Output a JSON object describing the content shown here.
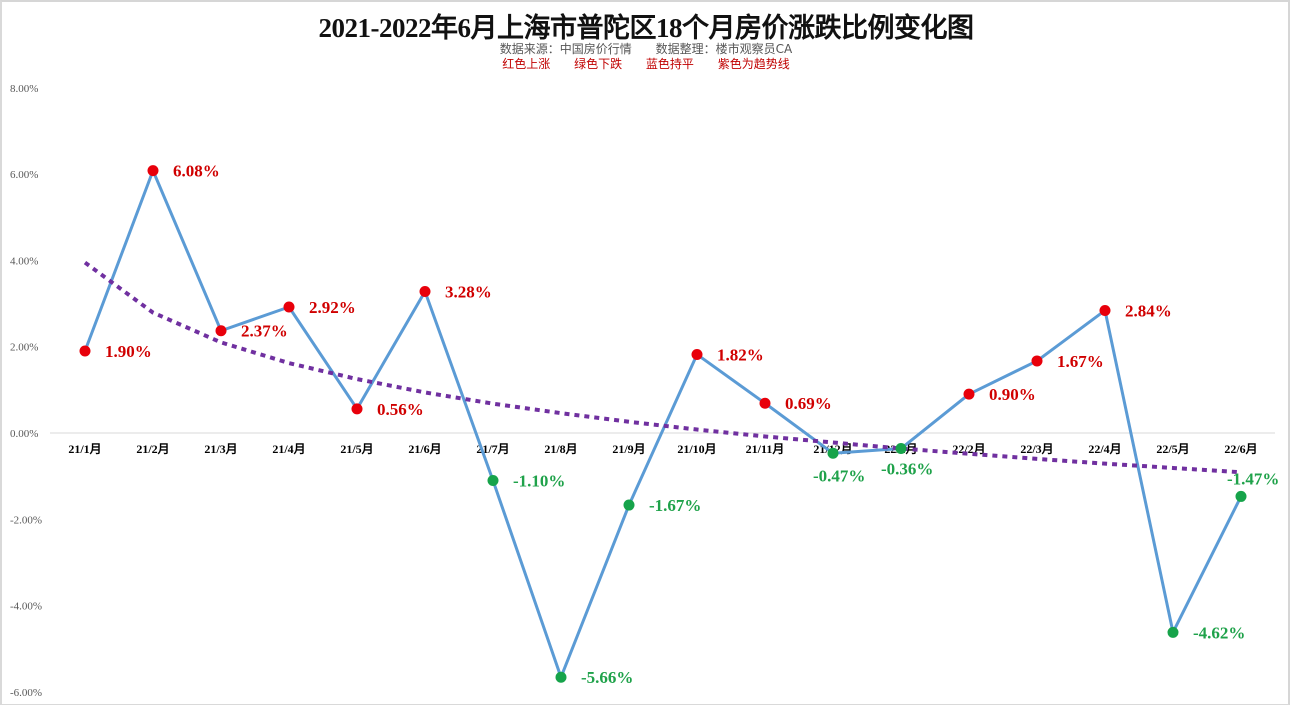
{
  "header": {
    "title": "2021-2022年6月上海市普陀区18个月房价涨跌比例变化图",
    "source": "数据来源：中国房价行情",
    "compiler": "数据整理：楼市观察员CA",
    "legend_notes": [
      "红色上涨",
      "绿色下跌",
      "蓝色持平",
      "紫色为趋势线"
    ]
  },
  "colors": {
    "line": "#5b9bd5",
    "up": "#e8000b",
    "down": "#16a34a",
    "trend": "#7030a0",
    "up_label": "#d00000",
    "down_label": "#1fa24a"
  },
  "chart_data": {
    "type": "line",
    "title": "2021-2022年6月上海市普陀区18个月房价涨跌比例变化图",
    "xlabel": "",
    "ylabel": "",
    "ylim": [
      -6,
      8
    ],
    "yticks": [
      "8.00%",
      "6.00%",
      "4.00%",
      "2.00%",
      "0.00%",
      "-2.00%",
      "-4.00%",
      "-6.00%"
    ],
    "categories": [
      "21/1月",
      "21/2月",
      "21/3月",
      "21/4月",
      "21/5月",
      "21/6月",
      "21/7月",
      "21/8月",
      "21/9月",
      "21/10月",
      "21/11月",
      "21/12月",
      "22/1月",
      "22/2月",
      "22/3月",
      "22/4月",
      "22/5月",
      "22/6月"
    ],
    "series": [
      {
        "name": "涨跌比例",
        "values": [
          1.9,
          6.08,
          2.37,
          2.92,
          0.56,
          3.28,
          -1.1,
          -5.66,
          -1.67,
          1.82,
          0.69,
          -0.47,
          -0.36,
          0.9,
          1.67,
          2.84,
          -4.62,
          -1.47
        ],
        "labels": [
          "1.90%",
          "6.08%",
          "2.37%",
          "2.92%",
          "0.56%",
          "3.28%",
          "-1.10%",
          "-5.66%",
          "-1.67%",
          "1.82%",
          "0.69%",
          "-0.47%",
          "-0.36%",
          "0.90%",
          "1.67%",
          "2.84%",
          "-4.62%",
          "-1.47%"
        ]
      },
      {
        "name": "趋势线",
        "kind": "logarithmic trendline",
        "values": [
          3.95,
          2.79,
          2.1,
          1.62,
          1.25,
          0.94,
          0.68,
          0.46,
          0.26,
          0.08,
          -0.08,
          -0.22,
          -0.36,
          -0.48,
          -0.6,
          -0.71,
          -0.81,
          -0.91
        ]
      }
    ],
    "grid": false,
    "legend": "none (color notes in subtitle)"
  }
}
